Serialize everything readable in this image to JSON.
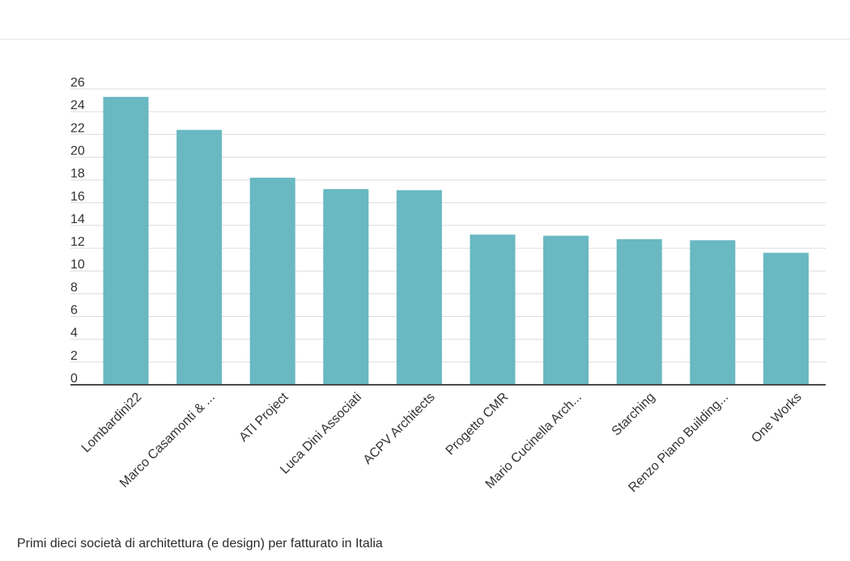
{
  "chart_data": {
    "type": "bar",
    "categories": [
      "Lombardini22",
      "Marco Casamonti & ...",
      "ATI Project",
      "Luca Dini Associati",
      "ACPV Architects",
      "Progetto CMR",
      "Mario Cucinella Arch...",
      "Starching",
      "Renzo Piano Building...",
      "One Works"
    ],
    "values": [
      25.3,
      22.4,
      18.2,
      17.2,
      17.1,
      13.2,
      13.1,
      12.8,
      12.7,
      11.6
    ],
    "yticks": [
      0,
      2,
      4,
      6,
      8,
      10,
      12,
      14,
      16,
      18,
      20,
      22,
      24,
      26
    ],
    "ylim": [
      0,
      26
    ],
    "grid": true,
    "bar_color": "#69b8c2",
    "xlabel": "",
    "ylabel": ""
  },
  "caption": "Primi dieci società di architettura (e design) per fatturato in Italia"
}
